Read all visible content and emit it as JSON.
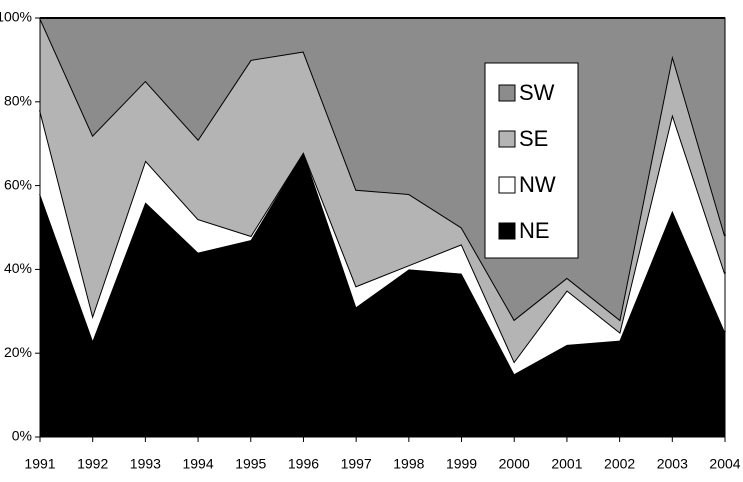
{
  "chart_data": {
    "type": "stacked_area_percent",
    "categories": [
      "1991",
      "1992",
      "1993",
      "1994",
      "1995",
      "1996",
      "1997",
      "1998",
      "1999",
      "2000",
      "2001",
      "2002",
      "2003",
      "2004"
    ],
    "series": [
      {
        "name": "NE",
        "color": "#000000",
        "values": [
          58,
          23,
          56,
          44,
          47,
          68,
          31,
          40,
          39,
          15,
          22,
          23,
          54,
          25
        ]
      },
      {
        "name": "NW",
        "color": "#ffffff",
        "values": [
          20,
          6,
          10,
          8,
          1,
          0,
          5,
          1,
          7,
          3,
          13,
          2,
          23,
          14
        ]
      },
      {
        "name": "SE",
        "color": "#b4b4b4",
        "values": [
          22,
          43,
          19,
          19,
          42,
          24,
          23,
          17,
          4,
          10,
          3,
          3,
          14,
          9
        ]
      },
      {
        "name": "SW",
        "color": "#8c8c8c",
        "values": [
          0,
          28,
          15,
          29,
          10,
          8,
          41,
          42,
          50,
          72,
          62,
          72,
          9,
          52
        ]
      }
    ],
    "ylim": [
      0,
      100
    ],
    "yticks": [
      {
        "value": 0,
        "label": "0%"
      },
      {
        "value": 20,
        "label": "20%"
      },
      {
        "value": 40,
        "label": "40%"
      },
      {
        "value": 60,
        "label": "60%"
      },
      {
        "value": 80,
        "label": "80%"
      },
      {
        "value": 100,
        "label": "100%"
      }
    ],
    "legend": "upper right"
  }
}
